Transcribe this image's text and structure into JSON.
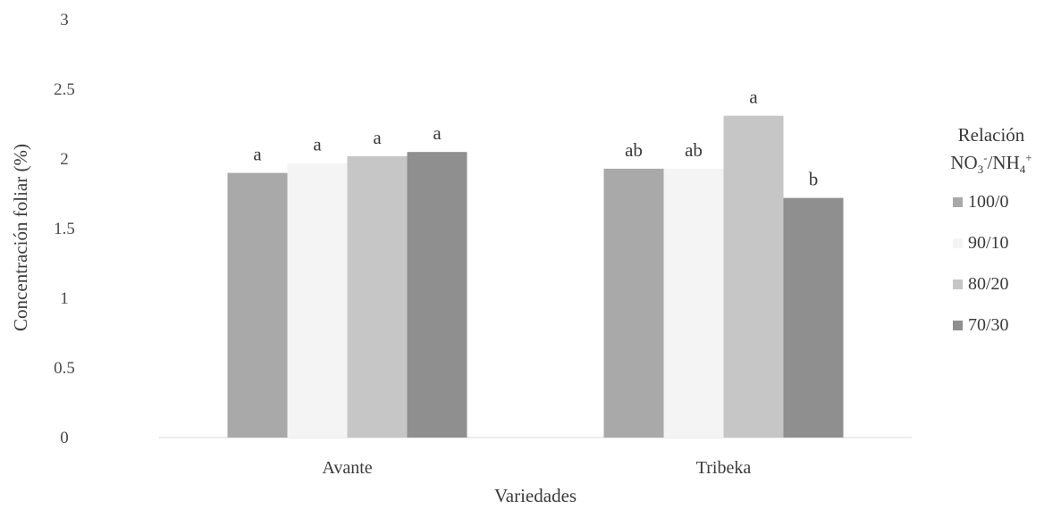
{
  "chart_data": {
    "type": "bar",
    "categories": [
      "Avante",
      "Tribeka"
    ],
    "series": [
      {
        "name": "100/0",
        "values": [
          1.9,
          1.93
        ],
        "letters": [
          "a",
          "ab"
        ]
      },
      {
        "name": "90/10",
        "values": [
          1.97,
          1.93
        ],
        "letters": [
          "a",
          "ab"
        ]
      },
      {
        "name": "80/20",
        "values": [
          2.02,
          2.31
        ],
        "letters": [
          "a",
          "a"
        ]
      },
      {
        "name": "70/30",
        "values": [
          2.05,
          1.72
        ],
        "letters": [
          "a",
          "b"
        ]
      }
    ],
    "xlabel": "Variedades",
    "ylabel": "Concentración foliar (%)",
    "ylim": [
      0,
      3
    ],
    "yticks": [
      "0",
      "0.5",
      "1",
      "1.5",
      "2",
      "2.5",
      "3"
    ],
    "ytick_values": [
      0,
      0.5,
      1,
      1.5,
      2,
      2.5,
      3
    ],
    "grid": false,
    "legend_placement": "right",
    "colors": [
      "#a9a9a9",
      "#f4f4f4",
      "#c6c6c6",
      "#8f8f8f"
    ]
  },
  "legend": {
    "title_line1": "Relación",
    "title_no3": "NO",
    "title_no3_sub": "3",
    "title_no3_sup": "-",
    "title_slash": "/NH",
    "title_nh4_sub": "4",
    "title_nh4_sup": "+"
  }
}
